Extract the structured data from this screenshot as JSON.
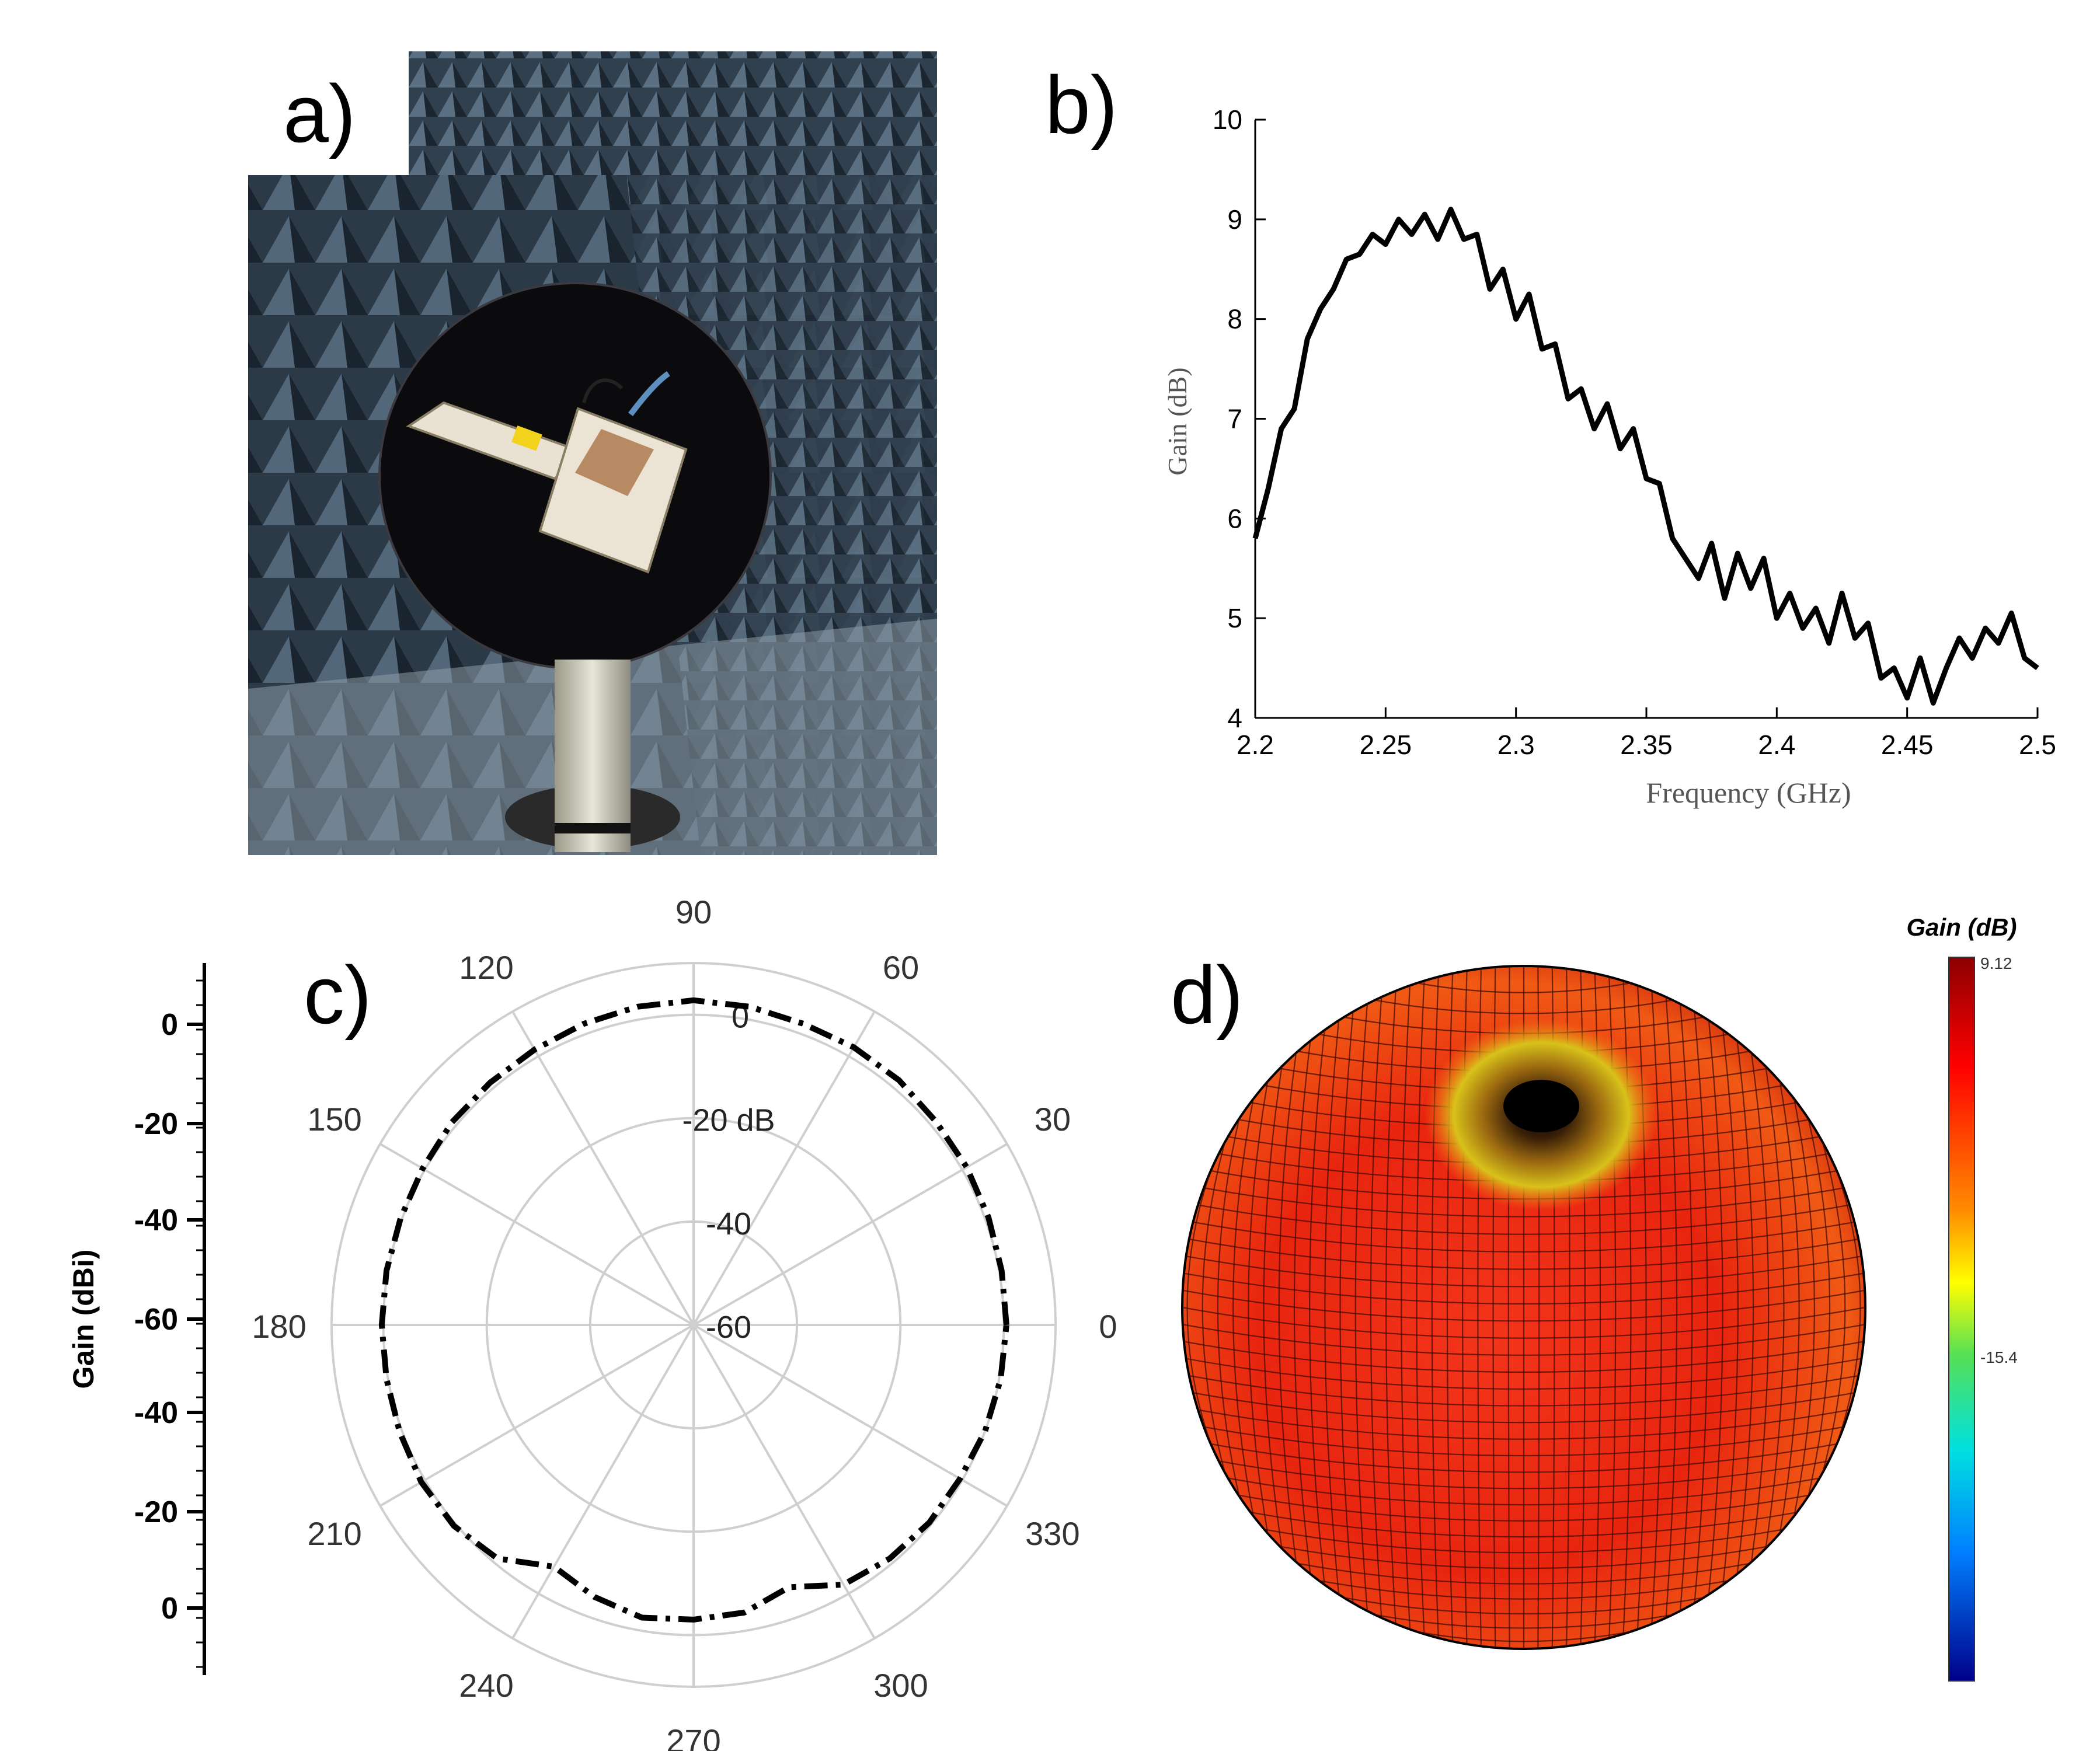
{
  "panels": {
    "a_label": "a)",
    "b_label": "b)",
    "c_label": "c)",
    "d_label": "d)"
  },
  "photo": {
    "subject": "antenna mounted on circular positioner inside anechoic chamber"
  },
  "chart_data": [
    {
      "type": "line",
      "xlabel": "Frequency (GHz)",
      "ylabel": "Gain (dB)",
      "xlim": [
        2.2,
        2.5
      ],
      "ylim": [
        4,
        10
      ],
      "xticks": [
        "2.2",
        "2.25",
        "2.3",
        "2.35",
        "2.4",
        "2.45",
        "2.5"
      ],
      "yticks": [
        "4",
        "5",
        "6",
        "7",
        "8",
        "9",
        "10"
      ],
      "series": [
        {
          "x": [
            2.2,
            2.205,
            2.21,
            2.215,
            2.22,
            2.225,
            2.23,
            2.235,
            2.24,
            2.245,
            2.25,
            2.255,
            2.26,
            2.265,
            2.27,
            2.275,
            2.28,
            2.285,
            2.29,
            2.295,
            2.3,
            2.305,
            2.31,
            2.315,
            2.32,
            2.325,
            2.33,
            2.335,
            2.34,
            2.345,
            2.35,
            2.355,
            2.36,
            2.365,
            2.37,
            2.375,
            2.38,
            2.385,
            2.39,
            2.395,
            2.4,
            2.405,
            2.41,
            2.415,
            2.42,
            2.425,
            2.43,
            2.435,
            2.44,
            2.445,
            2.45,
            2.455,
            2.46,
            2.465,
            2.47,
            2.475,
            2.48,
            2.485,
            2.49,
            2.495,
            2.5
          ],
          "y": [
            5.8,
            6.3,
            6.9,
            7.1,
            7.8,
            8.1,
            8.3,
            8.6,
            8.65,
            8.85,
            8.75,
            9.0,
            8.85,
            9.05,
            8.8,
            9.1,
            8.8,
            8.85,
            8.3,
            8.5,
            8.0,
            8.25,
            7.7,
            7.75,
            7.2,
            7.3,
            6.9,
            7.15,
            6.7,
            6.9,
            6.4,
            6.35,
            5.8,
            5.6,
            5.4,
            5.75,
            5.2,
            5.65,
            5.3,
            5.6,
            5.0,
            5.25,
            4.9,
            5.1,
            4.75,
            5.25,
            4.8,
            4.95,
            4.4,
            4.5,
            4.2,
            4.6,
            4.15,
            4.5,
            4.8,
            4.6,
            4.9,
            4.75,
            5.05,
            4.6,
            4.5
          ]
        }
      ]
    },
    {
      "type": "polar",
      "ylabel": "Gain (dBi)",
      "rlim": [
        -60,
        10
      ],
      "ring_labels": [
        "-60",
        "-40",
        "-20 dB",
        "0"
      ],
      "angle_labels": [
        "0",
        "30",
        "60",
        "90",
        "120",
        "150",
        "180",
        "210",
        "240",
        "270",
        "300",
        "330"
      ],
      "side_axis_ticks": [
        "0",
        "-20",
        "-40",
        "-60",
        "-40",
        "-20",
        "0"
      ],
      "series": [
        {
          "theta": [
            0,
            10,
            20,
            30,
            40,
            50,
            60,
            70,
            80,
            90,
            100,
            110,
            120,
            130,
            140,
            150,
            160,
            170,
            180,
            190,
            200,
            210,
            220,
            230,
            240,
            250,
            260,
            270,
            280,
            290,
            300,
            310,
            320,
            330,
            340,
            350
          ],
          "r": [
            0.5,
            0.5,
            0.7,
            1.0,
            1.2,
            1.8,
            2.0,
            2.0,
            2.5,
            2.8,
            2.5,
            2.0,
            1.5,
            1.2,
            1.0,
            0.5,
            0.3,
            0.3,
            0.3,
            0.3,
            0.5,
            0.8,
            0.5,
            -1.0,
            -6.0,
            -4.0,
            -2.5,
            -3.0,
            -3.5,
            -6.0,
            -2.0,
            -1.0,
            -0.5,
            -0.5,
            0.0,
            0.3
          ]
        }
      ]
    },
    {
      "type": "3d-radiation-pattern",
      "colorbar_title": "Gain (dB)",
      "colorbar_ticks": [
        "9.12",
        "-15.4"
      ],
      "colorbar_range": [
        -40,
        9.12
      ]
    }
  ],
  "colors": {
    "line": "#000000",
    "grid": "#cfcfcf",
    "sphere_red": "#e8200f",
    "sphere_dark": "#1a0a05"
  }
}
